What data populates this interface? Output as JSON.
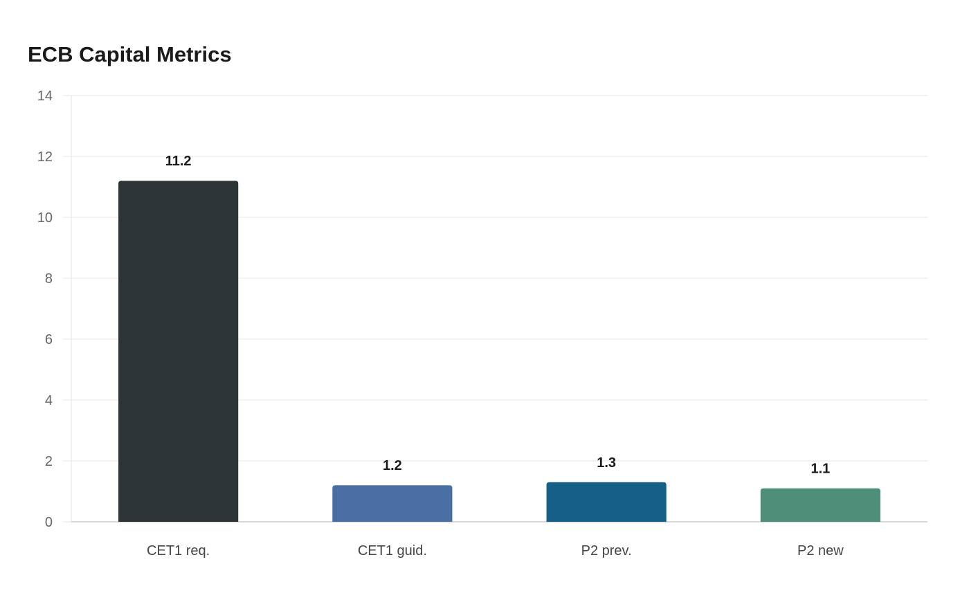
{
  "chart_data": {
    "type": "bar",
    "title": "ECB Capital Metrics",
    "xlabel": "",
    "ylabel": "",
    "categories": [
      "CET1 req.",
      "CET1 guid.",
      "P2 prev.",
      "P2 new"
    ],
    "values": [
      11.2,
      1.2,
      1.3,
      1.1
    ],
    "value_labels": [
      "11.2",
      "1.2",
      "1.3",
      "1.1"
    ],
    "colors": [
      "#2d3436",
      "#4a6fa5",
      "#166088",
      "#4f8f7a"
    ],
    "ylim": [
      0,
      14
    ],
    "yticks": [
      0,
      2,
      4,
      6,
      8,
      10,
      12,
      14
    ],
    "grid": true,
    "legend": "none"
  }
}
